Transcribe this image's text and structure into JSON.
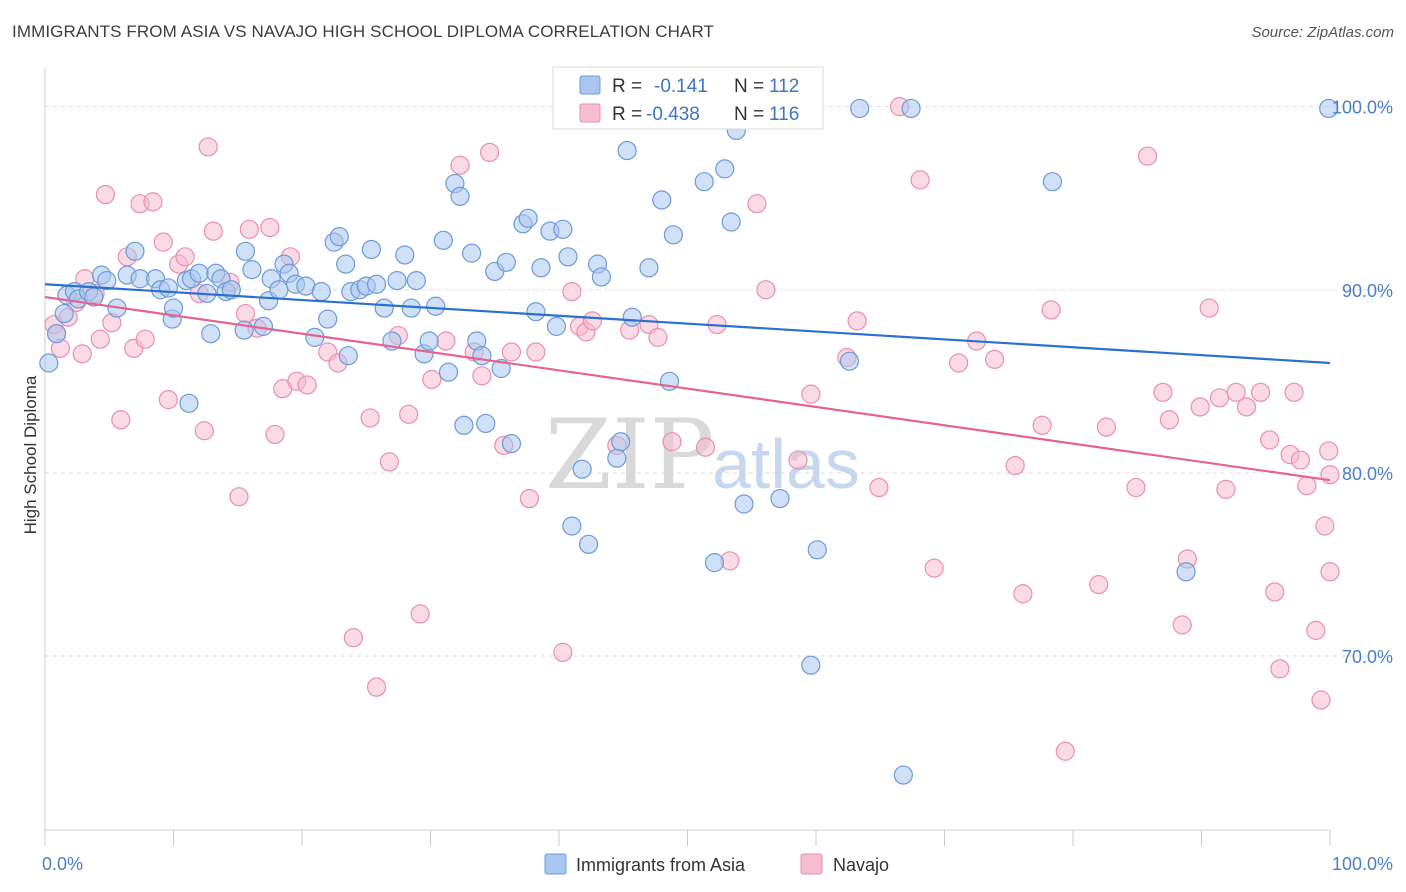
{
  "title": "IMMIGRANTS FROM ASIA VS NAVAJO HIGH SCHOOL DIPLOMA CORRELATION CHART",
  "source": "Source: ZipAtlas.com",
  "watermark": {
    "zip": "ZIP",
    "atlas": "atlas"
  },
  "colors": {
    "blue_fill": "#a9c6ee",
    "blue_stroke": "#6d9ad9",
    "blue_line": "#2b6fcf",
    "pink_fill": "#f6bcd0",
    "pink_stroke": "#ea8fae",
    "pink_line": "#e2648f",
    "grid": "#dddddd",
    "tick_label": "#4a7fc9"
  },
  "legend": {
    "rows": [
      {
        "r_label": "R =",
        "r_value": "-0.141",
        "n_label": "N =",
        "n_value": "112"
      },
      {
        "r_label": "R =",
        "r_value": "-0.438",
        "n_label": "N =",
        "n_value": "116"
      }
    ]
  },
  "bottom_legend": [
    "Immigrants from Asia",
    "Navajo"
  ],
  "chart_data": {
    "type": "scatter",
    "ylabel": "High School Diploma",
    "xlabel": "",
    "xlim": [
      0,
      100
    ],
    "ylim": [
      60.5,
      102
    ],
    "x_tick_labels": [
      {
        "value": 0,
        "label": "0.0%"
      },
      {
        "value": 100,
        "label": "100.0%"
      }
    ],
    "y_tick_labels": [
      {
        "value": 70,
        "label": "70.0%"
      },
      {
        "value": 80,
        "label": "80.0%"
      },
      {
        "value": 90,
        "label": "90.0%"
      },
      {
        "value": 100,
        "label": "100.0%"
      }
    ],
    "grid": true,
    "series": [
      {
        "name": "Immigrants from Asia",
        "trend": [
          [
            0,
            90.3
          ],
          [
            100,
            86.0
          ]
        ],
        "points": [
          [
            0.3,
            86.0
          ],
          [
            0.9,
            87.6
          ],
          [
            1.5,
            88.7
          ],
          [
            1.7,
            89.7
          ],
          [
            2.3,
            89.9
          ],
          [
            2.6,
            89.5
          ],
          [
            3.4,
            89.9
          ],
          [
            3.8,
            89.6
          ],
          [
            4.4,
            90.8
          ],
          [
            4.8,
            90.5
          ],
          [
            5.6,
            89.0
          ],
          [
            6.4,
            90.8
          ],
          [
            7.0,
            92.1
          ],
          [
            7.4,
            90.6
          ],
          [
            8.6,
            90.6
          ],
          [
            9.0,
            90.0
          ],
          [
            9.6,
            90.1
          ],
          [
            9.9,
            88.4
          ],
          [
            10.0,
            89.0
          ],
          [
            11.0,
            90.5
          ],
          [
            11.2,
            83.8
          ],
          [
            11.4,
            90.6
          ],
          [
            12.0,
            90.9
          ],
          [
            12.6,
            89.8
          ],
          [
            12.9,
            87.6
          ],
          [
            13.3,
            90.9
          ],
          [
            13.7,
            90.6
          ],
          [
            14.1,
            89.9
          ],
          [
            14.5,
            90.0
          ],
          [
            15.5,
            87.8
          ],
          [
            15.6,
            92.1
          ],
          [
            16.1,
            91.1
          ],
          [
            17.0,
            88.0
          ],
          [
            17.4,
            89.4
          ],
          [
            17.6,
            90.6
          ],
          [
            18.2,
            90.0
          ],
          [
            18.6,
            91.4
          ],
          [
            19.0,
            90.9
          ],
          [
            19.5,
            90.3
          ],
          [
            20.3,
            90.2
          ],
          [
            21.0,
            87.4
          ],
          [
            21.5,
            89.9
          ],
          [
            22.0,
            88.4
          ],
          [
            22.5,
            92.6
          ],
          [
            22.9,
            92.9
          ],
          [
            23.4,
            91.4
          ],
          [
            23.8,
            89.9
          ],
          [
            24.5,
            90.0
          ],
          [
            25.0,
            90.2
          ],
          [
            25.4,
            92.2
          ],
          [
            25.8,
            90.3
          ],
          [
            26.4,
            89.0
          ],
          [
            27.0,
            87.2
          ],
          [
            27.4,
            90.5
          ],
          [
            28.0,
            91.9
          ],
          [
            28.5,
            89.0
          ],
          [
            28.9,
            90.5
          ],
          [
            29.5,
            86.5
          ],
          [
            29.9,
            87.2
          ],
          [
            30.4,
            89.1
          ],
          [
            31.0,
            92.7
          ],
          [
            31.4,
            85.5
          ],
          [
            31.9,
            95.8
          ],
          [
            32.3,
            95.1
          ],
          [
            32.6,
            82.6
          ],
          [
            33.2,
            92.0
          ],
          [
            33.6,
            87.2
          ],
          [
            34.0,
            86.4
          ],
          [
            34.3,
            82.7
          ],
          [
            35.0,
            91.0
          ],
          [
            35.5,
            85.7
          ],
          [
            35.9,
            91.5
          ],
          [
            36.3,
            81.6
          ],
          [
            37.2,
            93.6
          ],
          [
            37.6,
            93.9
          ],
          [
            38.2,
            88.8
          ],
          [
            38.6,
            91.2
          ],
          [
            39.3,
            93.2
          ],
          [
            39.8,
            88.0
          ],
          [
            40.3,
            93.3
          ],
          [
            40.7,
            91.8
          ],
          [
            41.0,
            77.1
          ],
          [
            41.8,
            80.2
          ],
          [
            42.3,
            76.1
          ],
          [
            43.0,
            91.4
          ],
          [
            43.3,
            90.7
          ],
          [
            44.5,
            80.8
          ],
          [
            44.8,
            81.7
          ],
          [
            45.3,
            97.6
          ],
          [
            45.7,
            88.5
          ],
          [
            46.2,
            99.8
          ],
          [
            47.0,
            91.2
          ],
          [
            48.0,
            94.9
          ],
          [
            48.6,
            85.0
          ],
          [
            48.9,
            93.0
          ],
          [
            51.3,
            95.9
          ],
          [
            52.1,
            75.1
          ],
          [
            52.9,
            96.6
          ],
          [
            53.4,
            93.7
          ],
          [
            53.8,
            98.7
          ],
          [
            54.4,
            78.3
          ],
          [
            57.2,
            78.6
          ],
          [
            59.6,
            69.5
          ],
          [
            60.1,
            75.8
          ],
          [
            62.6,
            86.1
          ],
          [
            63.4,
            99.9
          ],
          [
            66.8,
            63.5
          ],
          [
            67.4,
            99.9
          ],
          [
            78.4,
            95.9
          ],
          [
            88.8,
            74.6
          ],
          [
            99.9,
            99.9
          ],
          [
            23.6,
            86.4
          ]
        ]
      },
      {
        "name": "Navajo",
        "trend": [
          [
            0,
            89.6
          ],
          [
            100,
            79.6
          ]
        ],
        "points": [
          [
            0.7,
            88.1
          ],
          [
            0.9,
            87.6
          ],
          [
            1.2,
            86.8
          ],
          [
            1.8,
            88.5
          ],
          [
            2.4,
            89.3
          ],
          [
            2.9,
            86.5
          ],
          [
            3.1,
            90.6
          ],
          [
            3.9,
            89.8
          ],
          [
            4.3,
            87.3
          ],
          [
            4.7,
            95.2
          ],
          [
            5.2,
            88.2
          ],
          [
            5.9,
            82.9
          ],
          [
            6.4,
            91.8
          ],
          [
            6.9,
            86.8
          ],
          [
            7.4,
            94.7
          ],
          [
            7.8,
            87.3
          ],
          [
            8.4,
            94.8
          ],
          [
            9.2,
            92.6
          ],
          [
            9.6,
            84.0
          ],
          [
            10.4,
            91.4
          ],
          [
            10.9,
            91.8
          ],
          [
            12.0,
            89.8
          ],
          [
            12.4,
            82.3
          ],
          [
            12.7,
            97.8
          ],
          [
            13.1,
            93.2
          ],
          [
            14.4,
            90.4
          ],
          [
            15.1,
            78.7
          ],
          [
            15.6,
            88.7
          ],
          [
            15.9,
            93.3
          ],
          [
            16.5,
            87.9
          ],
          [
            17.5,
            93.4
          ],
          [
            17.9,
            82.1
          ],
          [
            18.5,
            84.6
          ],
          [
            19.1,
            91.8
          ],
          [
            19.6,
            85.0
          ],
          [
            20.4,
            84.8
          ],
          [
            22.0,
            86.6
          ],
          [
            22.8,
            86.0
          ],
          [
            24.0,
            71.0
          ],
          [
            25.3,
            83.0
          ],
          [
            25.8,
            68.3
          ],
          [
            26.8,
            80.6
          ],
          [
            27.5,
            87.5
          ],
          [
            28.3,
            83.2
          ],
          [
            29.2,
            72.3
          ],
          [
            30.1,
            85.1
          ],
          [
            31.2,
            87.2
          ],
          [
            32.3,
            96.8
          ],
          [
            33.4,
            86.6
          ],
          [
            34.0,
            85.3
          ],
          [
            34.6,
            97.5
          ],
          [
            35.7,
            81.5
          ],
          [
            36.3,
            86.6
          ],
          [
            37.7,
            78.6
          ],
          [
            38.2,
            86.6
          ],
          [
            40.3,
            70.2
          ],
          [
            41.0,
            89.9
          ],
          [
            41.6,
            88.0
          ],
          [
            42.1,
            87.7
          ],
          [
            42.6,
            88.3
          ],
          [
            44.5,
            81.5
          ],
          [
            45.5,
            87.8
          ],
          [
            46.5,
            100.0
          ],
          [
            47.0,
            88.1
          ],
          [
            47.7,
            87.4
          ],
          [
            48.8,
            81.7
          ],
          [
            51.4,
            81.4
          ],
          [
            52.3,
            88.1
          ],
          [
            53.3,
            75.2
          ],
          [
            54.0,
            100.0
          ],
          [
            55.4,
            94.7
          ],
          [
            56.1,
            90.0
          ],
          [
            58.6,
            80.7
          ],
          [
            59.6,
            84.3
          ],
          [
            62.4,
            86.3
          ],
          [
            63.2,
            88.3
          ],
          [
            64.9,
            79.2
          ],
          [
            66.5,
            100.0
          ],
          [
            68.1,
            96.0
          ],
          [
            69.2,
            74.8
          ],
          [
            71.1,
            86.0
          ],
          [
            72.5,
            87.2
          ],
          [
            73.9,
            86.2
          ],
          [
            75.5,
            80.4
          ],
          [
            76.1,
            73.4
          ],
          [
            77.6,
            82.6
          ],
          [
            78.3,
            88.9
          ],
          [
            79.4,
            64.8
          ],
          [
            82.0,
            73.9
          ],
          [
            82.6,
            82.5
          ],
          [
            84.9,
            79.2
          ],
          [
            85.8,
            97.3
          ],
          [
            87.0,
            84.4
          ],
          [
            87.5,
            82.9
          ],
          [
            88.5,
            71.7
          ],
          [
            88.9,
            75.3
          ],
          [
            89.9,
            83.6
          ],
          [
            90.6,
            89.0
          ],
          [
            91.4,
            84.1
          ],
          [
            91.9,
            79.1
          ],
          [
            92.7,
            84.4
          ],
          [
            93.5,
            83.6
          ],
          [
            94.6,
            84.4
          ],
          [
            95.3,
            81.8
          ],
          [
            95.7,
            73.5
          ],
          [
            96.1,
            69.3
          ],
          [
            96.9,
            81.0
          ],
          [
            97.2,
            84.4
          ],
          [
            97.7,
            80.7
          ],
          [
            98.2,
            79.3
          ],
          [
            98.9,
            71.4
          ],
          [
            99.3,
            67.6
          ],
          [
            99.6,
            77.1
          ],
          [
            99.9,
            81.2
          ],
          [
            100.0,
            74.6
          ],
          [
            100.0,
            79.9
          ]
        ]
      }
    ]
  }
}
